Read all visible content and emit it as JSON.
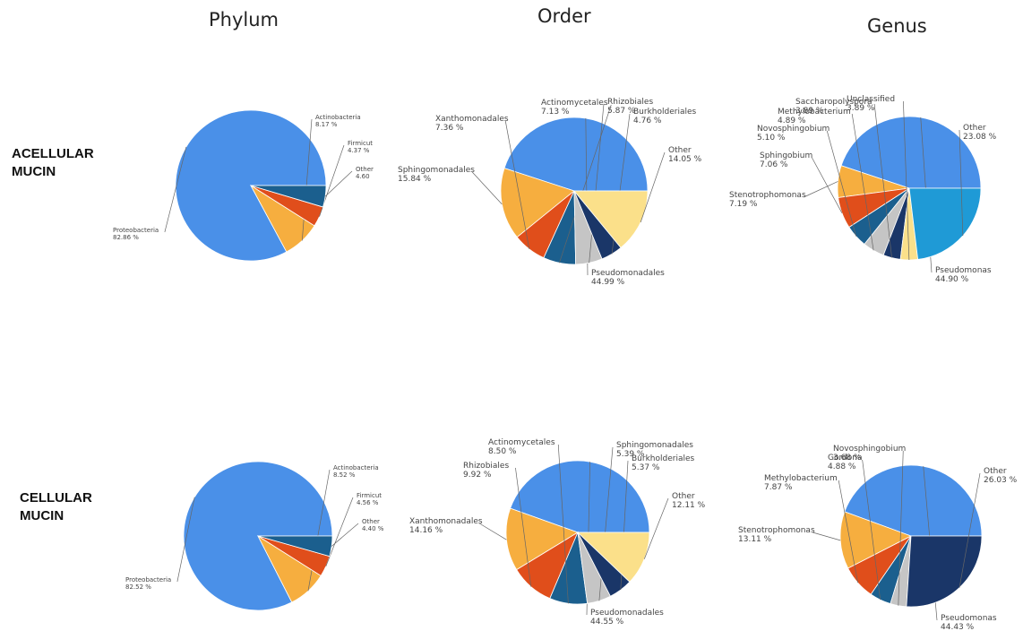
{
  "columns": [
    "Phylum",
    "Order",
    "Genus"
  ],
  "rows": [
    "ACELLULAR\nMUCIN",
    "CELLULAR\nMUCIN"
  ],
  "chart_data": [
    {
      "type": "pie",
      "row": "ACELLULAR MUCIN",
      "column": "Phylum",
      "slices": [
        {
          "label": "Proteobacteria",
          "value": 82.86,
          "value_text": "82.86 %",
          "color": "#4a90e8"
        },
        {
          "label": "Actinobacteria",
          "value": 8.17,
          "value_text": "8.17 %",
          "color": "#f6ae3f"
        },
        {
          "label": "Firmicut",
          "value": 4.37,
          "value_text": "4.37 %",
          "color": "#e04e1b"
        },
        {
          "label": "Other",
          "value": 4.6,
          "value_text": "4.60",
          "color": "#1b5f8e"
        }
      ]
    },
    {
      "type": "pie",
      "row": "ACELLULAR MUCIN",
      "column": "Order",
      "slices": [
        {
          "label": "Pseudomonadales",
          "value": 44.99,
          "value_text": "44.99 %",
          "color": "#4a90e8"
        },
        {
          "label": "Sphingomonadales",
          "value": 15.84,
          "value_text": "15.84 %",
          "color": "#f6ae3f"
        },
        {
          "label": "Xanthomonadales",
          "value": 7.36,
          "value_text": "7.36 %",
          "color": "#e04e1b"
        },
        {
          "label": "Actinomycetales",
          "value": 7.13,
          "value_text": "7.13 %",
          "color": "#1b5f8e"
        },
        {
          "label": "Rhizobiales",
          "value": 5.87,
          "value_text": "5.87 %",
          "color": "#c5c5c5"
        },
        {
          "label": "Burkholderiales",
          "value": 4.76,
          "value_text": "4.76 %",
          "color": "#1a3668"
        },
        {
          "label": "Other",
          "value": 14.05,
          "value_text": "14.05 %",
          "color": "#fbe08a"
        }
      ]
    },
    {
      "type": "pie",
      "row": "ACELLULAR MUCIN",
      "column": "Genus",
      "slices": [
        {
          "label": "Pseudomonas",
          "value": 44.9,
          "value_text": "44.90 %",
          "color": "#4a90e8"
        },
        {
          "label": "Stenotrophomonas",
          "value": 7.19,
          "value_text": "7.19 %",
          "color": "#f6ae3f"
        },
        {
          "label": "Sphingobium",
          "value": 7.06,
          "value_text": "7.06 %",
          "color": "#e04e1b"
        },
        {
          "label": "Novosphingobium",
          "value": 5.1,
          "value_text": "5.10 %",
          "color": "#1b5f8e"
        },
        {
          "label": "Methylobacterium",
          "value": 4.89,
          "value_text": "4.89 %",
          "color": "#c5c5c5"
        },
        {
          "label": "Saccharopolyspora",
          "value": 3.89,
          "value_text": "3.89 %",
          "color": "#1a3668"
        },
        {
          "label": "Unclassified",
          "value": 3.89,
          "value_text": "3.89 %",
          "color": "#fbe08a"
        },
        {
          "label": "Other",
          "value": 23.08,
          "value_text": "23.08 %",
          "color": "#1f9ad6"
        }
      ]
    },
    {
      "type": "pie",
      "row": "CELLULAR MUCIN",
      "column": "Phylum",
      "slices": [
        {
          "label": "Proteobacteria",
          "value": 82.52,
          "value_text": "82.52 %",
          "color": "#4a90e8"
        },
        {
          "label": "Actinobacteria",
          "value": 8.52,
          "value_text": "8.52 %",
          "color": "#f6ae3f"
        },
        {
          "label": "Firmicut",
          "value": 4.56,
          "value_text": "4.56 %",
          "color": "#e04e1b"
        },
        {
          "label": "Other",
          "value": 4.4,
          "value_text": "4.40 %",
          "color": "#1b5f8e"
        }
      ]
    },
    {
      "type": "pie",
      "row": "CELLULAR MUCIN",
      "column": "Order",
      "slices": [
        {
          "label": "Pseudomonadales",
          "value": 44.55,
          "value_text": "44.55 %",
          "color": "#4a90e8"
        },
        {
          "label": "Xanthomonadales",
          "value": 14.16,
          "value_text": "14.16 %",
          "color": "#f6ae3f"
        },
        {
          "label": "Rhizobiales",
          "value": 9.92,
          "value_text": "9.92 %",
          "color": "#e04e1b"
        },
        {
          "label": "Actinomycetales",
          "value": 8.5,
          "value_text": "8.50 %",
          "color": "#1b5f8e"
        },
        {
          "label": "Sphingomonadales",
          "value": 5.39,
          "value_text": "5.39 %",
          "color": "#c5c5c5"
        },
        {
          "label": "Burkholderiales",
          "value": 5.37,
          "value_text": "5.37 %",
          "color": "#1a3668"
        },
        {
          "label": "Other",
          "value": 12.11,
          "value_text": "12.11 %",
          "color": "#fbe08a"
        }
      ]
    },
    {
      "type": "pie",
      "row": "CELLULAR MUCIN",
      "column": "Genus",
      "slices": [
        {
          "label": "Pseudomonas",
          "value": 44.43,
          "value_text": "44.43 %",
          "color": "#4a90e8"
        },
        {
          "label": "Stenotrophomonas",
          "value": 13.11,
          "value_text": "13.11 %",
          "color": "#f6ae3f"
        },
        {
          "label": "Methylobacterium",
          "value": 7.87,
          "value_text": "7.87 %",
          "color": "#e04e1b"
        },
        {
          "label": "Gordona",
          "value": 4.88,
          "value_text": "4.88 %",
          "color": "#1b5f8e"
        },
        {
          "label": "Novosphingobium",
          "value": 3.68,
          "value_text": "3.68 %",
          "color": "#c5c5c5"
        },
        {
          "label": "Other",
          "value": 26.03,
          "value_text": "26.03 %",
          "color": "#1a3668"
        }
      ]
    }
  ]
}
